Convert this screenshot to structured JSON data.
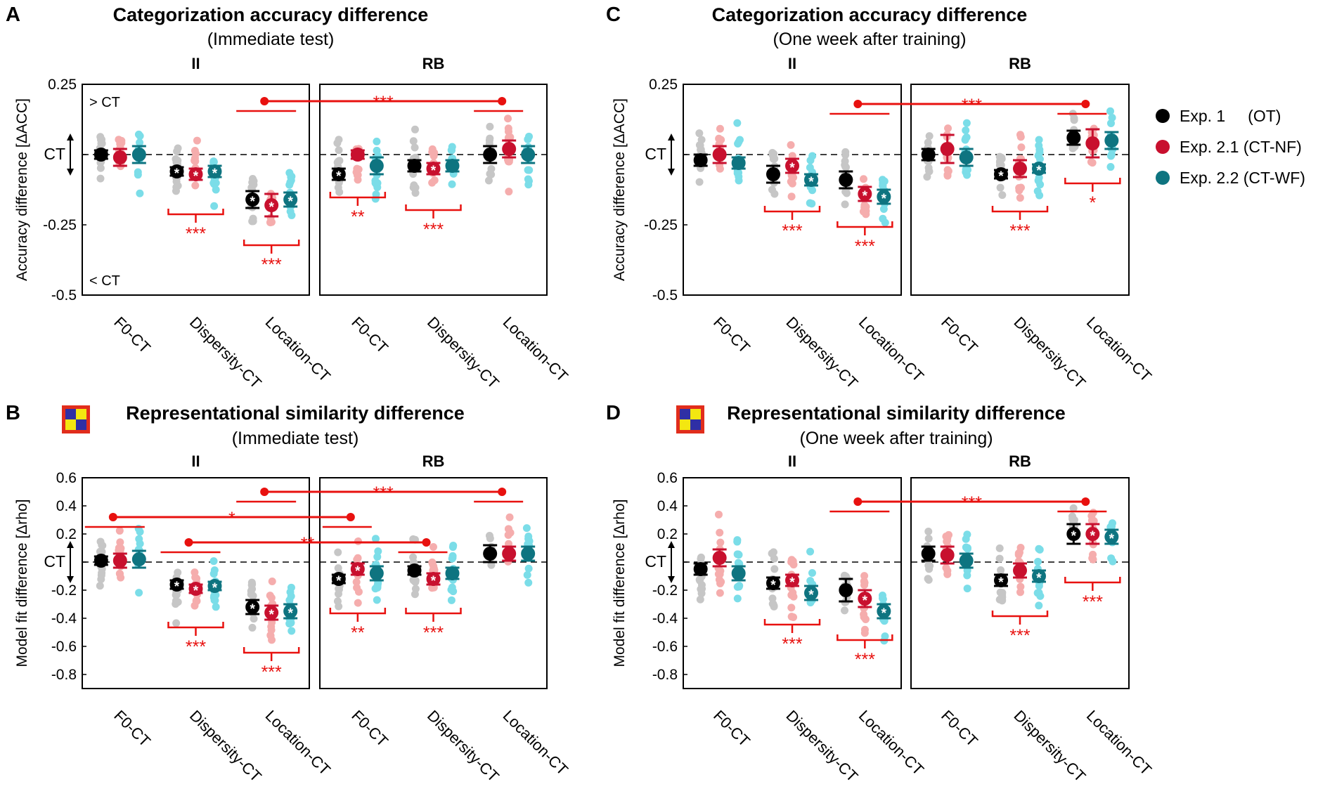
{
  "colors": {
    "exp1": "#000000",
    "exp21": "#c8102e",
    "exp22": "#0e7480",
    "exp1_light": "#c6c6c6",
    "exp21_light": "#f5adad",
    "exp22_light": "#7bdde8",
    "sig": "#e8110f"
  },
  "legend": {
    "items": [
      {
        "label": "Exp. 1     (OT)",
        "color": "#000000"
      },
      {
        "label": "Exp. 2.1 (CT-NF)",
        "color": "#c8102e"
      },
      {
        "label": "Exp. 2.2 (CT-WF)",
        "color": "#0e7480"
      }
    ]
  },
  "icon": {
    "name": "rsa-matrix-icon"
  },
  "chart_data": [
    {
      "panel": "A",
      "type": "scatter",
      "title": "Categorization accuracy difference",
      "subtitle": "(Immediate test)",
      "ylabel": "Accuracy difference [ΔACC]",
      "ylim": [
        -0.5,
        0.25
      ],
      "yticks": [
        {
          "value": 0.25,
          "label": "0.25"
        },
        {
          "value": 0,
          "label": "CT"
        },
        {
          "value": -0.25,
          "label": "-0.25"
        },
        {
          "value": -0.5,
          "label": "-0.5"
        }
      ],
      "annotations": {
        "top": "> CT",
        "bottom": "< CT"
      },
      "groups": [
        "II",
        "RB"
      ],
      "categories": [
        "F0-CT",
        "Dispersity-CT",
        "Location-CT"
      ],
      "means": {
        "II": [
          [
            0.0,
            -0.01,
            0.0
          ],
          [
            -0.06,
            -0.07,
            -0.06
          ],
          [
            -0.16,
            -0.18,
            -0.16
          ]
        ],
        "RB": [
          [
            -0.07,
            0.0,
            -0.04
          ],
          [
            -0.04,
            -0.05,
            -0.04
          ],
          [
            0.0,
            0.02,
            0.0
          ]
        ]
      },
      "errors": {
        "II": [
          [
            0.015,
            0.03,
            0.03
          ],
          [
            0.015,
            0.02,
            0.02
          ],
          [
            0.03,
            0.04,
            0.025
          ]
        ],
        "RB": [
          [
            0.02,
            0.015,
            0.03
          ],
          [
            0.02,
            0.02,
            0.02
          ],
          [
            0.03,
            0.03,
            0.03
          ]
        ]
      },
      "significant": {
        "II": [
          [
            false,
            false,
            false
          ],
          [
            true,
            true,
            true
          ],
          [
            true,
            true,
            true
          ]
        ],
        "RB": [
          [
            true,
            false,
            false
          ],
          [
            false,
            true,
            false
          ],
          [
            false,
            false,
            false
          ]
        ]
      },
      "within_sig": {
        "II": [
          "",
          "***",
          "***"
        ],
        "RB": [
          "**",
          "***",
          ""
        ]
      },
      "cross_sig": [
        {
          "from": {
            "group": "II",
            "cat": 2
          },
          "to": {
            "group": "RB",
            "cat": 2
          },
          "label": "***",
          "y": 0.19
        }
      ]
    },
    {
      "panel": "B",
      "type": "scatter",
      "title": "Representational similarity difference",
      "subtitle": "(Immediate test)",
      "ylabel": "Model fit difference [Δrho]",
      "ylim": [
        -0.9,
        0.6
      ],
      "yticks": [
        {
          "value": 0.6,
          "label": "0.6"
        },
        {
          "value": 0.4,
          "label": "0.4"
        },
        {
          "value": 0.2,
          "label": "0.2"
        },
        {
          "value": 0,
          "label": "CT"
        },
        {
          "value": -0.2,
          "label": "-0.2"
        },
        {
          "value": -0.4,
          "label": "-0.4"
        },
        {
          "value": -0.6,
          "label": "-0.6"
        },
        {
          "value": -0.8,
          "label": "-0.8"
        }
      ],
      "groups": [
        "II",
        "RB"
      ],
      "categories": [
        "F0-CT",
        "Dispersity-CT",
        "Location-CT"
      ],
      "means": {
        "II": [
          [
            0.01,
            0.01,
            0.02
          ],
          [
            -0.16,
            -0.19,
            -0.17
          ],
          [
            -0.32,
            -0.36,
            -0.35
          ]
        ],
        "RB": [
          [
            -0.12,
            -0.05,
            -0.08
          ],
          [
            -0.06,
            -0.12,
            -0.08
          ],
          [
            0.06,
            0.06,
            0.06
          ]
        ]
      },
      "errors": {
        "II": [
          [
            0.03,
            0.05,
            0.06
          ],
          [
            0.03,
            0.03,
            0.03
          ],
          [
            0.05,
            0.05,
            0.05
          ]
        ],
        "RB": [
          [
            0.03,
            0.04,
            0.05
          ],
          [
            0.03,
            0.04,
            0.04
          ],
          [
            0.06,
            0.05,
            0.05
          ]
        ]
      },
      "significant": {
        "II": [
          [
            false,
            false,
            false
          ],
          [
            true,
            true,
            true
          ],
          [
            true,
            true,
            true
          ]
        ],
        "RB": [
          [
            true,
            true,
            false
          ],
          [
            false,
            true,
            false
          ],
          [
            false,
            false,
            false
          ]
        ]
      },
      "within_sig": {
        "II": [
          "",
          "***",
          "***"
        ],
        "RB": [
          "**",
          "***",
          ""
        ]
      },
      "cross_sig": [
        {
          "from": {
            "group": "II",
            "cat": 2
          },
          "to": {
            "group": "RB",
            "cat": 2
          },
          "label": "***",
          "y": 0.5
        },
        {
          "from": {
            "group": "II",
            "cat": 0
          },
          "to": {
            "group": "RB",
            "cat": 0
          },
          "label": "*",
          "y": 0.32
        },
        {
          "from": {
            "group": "II",
            "cat": 1
          },
          "to": {
            "group": "RB",
            "cat": 1
          },
          "label": "**",
          "y": 0.14
        }
      ]
    },
    {
      "panel": "C",
      "type": "scatter",
      "title": "Categorization accuracy difference",
      "subtitle": "(One week after training)",
      "ylabel": "Accuracy difference [ΔACC]",
      "ylim": [
        -0.5,
        0.25
      ],
      "yticks": [
        {
          "value": 0.25,
          "label": "0.25"
        },
        {
          "value": 0,
          "label": "CT"
        },
        {
          "value": -0.25,
          "label": "-0.25"
        },
        {
          "value": -0.5,
          "label": "-0.5"
        }
      ],
      "groups": [
        "II",
        "RB"
      ],
      "categories": [
        "F0-CT",
        "Dispersity-CT",
        "Location-CT"
      ],
      "means": {
        "II": [
          [
            -0.02,
            0.0,
            -0.03
          ],
          [
            -0.07,
            -0.04,
            -0.09
          ],
          [
            -0.09,
            -0.14,
            -0.15
          ]
        ],
        "RB": [
          [
            0.0,
            0.02,
            -0.01
          ],
          [
            -0.07,
            -0.05,
            -0.05
          ],
          [
            0.06,
            0.04,
            0.05
          ]
        ]
      },
      "errors": {
        "II": [
          [
            0.02,
            0.03,
            0.02
          ],
          [
            0.03,
            0.025,
            0.02
          ],
          [
            0.03,
            0.025,
            0.025
          ]
        ],
        "RB": [
          [
            0.02,
            0.05,
            0.03
          ],
          [
            0.015,
            0.03,
            0.015
          ],
          [
            0.025,
            0.05,
            0.03
          ]
        ]
      },
      "significant": {
        "II": [
          [
            false,
            false,
            false
          ],
          [
            false,
            true,
            true
          ],
          [
            false,
            true,
            true
          ]
        ],
        "RB": [
          [
            false,
            false,
            false
          ],
          [
            true,
            false,
            true
          ],
          [
            false,
            false,
            false
          ]
        ]
      },
      "within_sig": {
        "II": [
          "",
          "***",
          "***"
        ],
        "RB": [
          "",
          "***",
          "*"
        ]
      },
      "cross_sig": [
        {
          "from": {
            "group": "II",
            "cat": 2
          },
          "to": {
            "group": "RB",
            "cat": 2
          },
          "label": "***",
          "y": 0.18
        }
      ]
    },
    {
      "panel": "D",
      "type": "scatter",
      "title": "Representational similarity difference",
      "subtitle": "(One week after training)",
      "ylabel": "Model fit difference [Δrho]",
      "ylim": [
        -0.9,
        0.6
      ],
      "yticks": [
        {
          "value": 0.6,
          "label": "0.6"
        },
        {
          "value": 0.4,
          "label": "0.4"
        },
        {
          "value": 0.2,
          "label": "0.2"
        },
        {
          "value": 0,
          "label": "CT"
        },
        {
          "value": -0.2,
          "label": "-0.2"
        },
        {
          "value": -0.4,
          "label": "-0.4"
        },
        {
          "value": -0.6,
          "label": "-0.6"
        },
        {
          "value": -0.8,
          "label": "-0.8"
        }
      ],
      "groups": [
        "II",
        "RB"
      ],
      "categories": [
        "F0-CT",
        "Dispersity-CT",
        "Location-CT"
      ],
      "means": {
        "II": [
          [
            -0.05,
            0.03,
            -0.08
          ],
          [
            -0.15,
            -0.13,
            -0.22
          ],
          [
            -0.2,
            -0.26,
            -0.35
          ]
        ],
        "RB": [
          [
            0.06,
            0.05,
            0.01
          ],
          [
            -0.13,
            -0.06,
            -0.1
          ],
          [
            0.2,
            0.2,
            0.18
          ]
        ]
      },
      "errors": {
        "II": [
          [
            0.04,
            0.06,
            0.05
          ],
          [
            0.04,
            0.04,
            0.05
          ],
          [
            0.08,
            0.06,
            0.05
          ]
        ],
        "RB": [
          [
            0.05,
            0.06,
            0.05
          ],
          [
            0.04,
            0.05,
            0.04
          ],
          [
            0.07,
            0.07,
            0.05
          ]
        ]
      },
      "significant": {
        "II": [
          [
            false,
            false,
            false
          ],
          [
            true,
            true,
            true
          ],
          [
            false,
            true,
            true
          ]
        ],
        "RB": [
          [
            false,
            false,
            false
          ],
          [
            true,
            false,
            true
          ],
          [
            true,
            true,
            true
          ]
        ]
      },
      "within_sig": {
        "II": [
          "",
          "***",
          "***"
        ],
        "RB": [
          "",
          "***",
          "***"
        ]
      },
      "cross_sig": [
        {
          "from": {
            "group": "II",
            "cat": 2
          },
          "to": {
            "group": "RB",
            "cat": 2
          },
          "label": "***",
          "y": 0.43
        }
      ]
    }
  ]
}
